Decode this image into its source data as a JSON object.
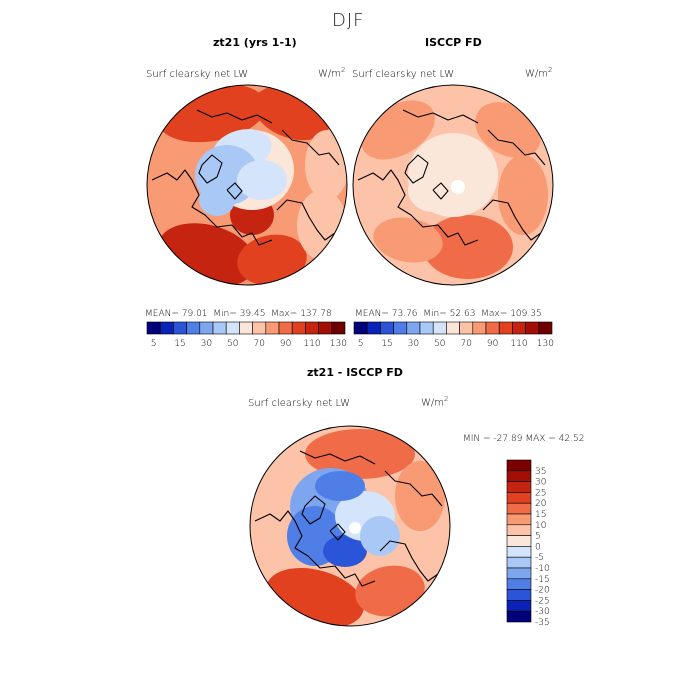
{
  "figure": {
    "title": "DJF"
  },
  "panels": [
    {
      "title": "zt21 (yrs 1-1)",
      "variable": "Surf clearsky net LW",
      "units_base": "W/m",
      "units_exp": "2",
      "stats": {
        "mean_label": "MEAN=",
        "mean": "79.01",
        "min_label": "Min=",
        "min": "39.45",
        "max_label": "Max=",
        "max": "137.78"
      }
    },
    {
      "title": "ISCCP FD",
      "variable": "Surf clearsky net LW",
      "units_base": "W/m",
      "units_exp": "2",
      "stats": {
        "mean_label": "MEAN=",
        "mean": "73.76",
        "min_label": "Min=",
        "min": "52.63",
        "max_label": "Max=",
        "max": "109.35"
      }
    },
    {
      "title": "zt21 - ISCCP FD",
      "variable": "Surf clearsky net LW",
      "units_base": "W/m",
      "units_exp": "2",
      "stats": {
        "min_label": "MIN =",
        "min": "-27.89",
        "max_label": "MAX =",
        "max": "42.52"
      }
    }
  ],
  "chart_data": [
    {
      "type": "heatmap",
      "title": "zt21 (yrs 1-1)",
      "projection": "north polar stereographic",
      "colorbar": {
        "orientation": "horizontal",
        "tick_labels": [
          "5",
          "15",
          "30",
          "50",
          "70",
          "90",
          "110",
          "130"
        ],
        "colors": [
          "#00007a",
          "#0a22b8",
          "#2b55d8",
          "#4f7fe6",
          "#7ea6ef",
          "#aac8f6",
          "#d4e4fb",
          "#fbe6da",
          "#fcc3a8",
          "#f89a74",
          "#f06b47",
          "#e1411f",
          "#c52410",
          "#a30f05",
          "#6e0000"
        ]
      },
      "stats": {
        "mean": 79.01,
        "min": 39.45,
        "max": 137.78
      }
    },
    {
      "type": "heatmap",
      "title": "ISCCP FD",
      "projection": "north polar stereographic",
      "colorbar": {
        "orientation": "horizontal",
        "tick_labels": [
          "5",
          "15",
          "30",
          "50",
          "70",
          "90",
          "110",
          "130"
        ],
        "colors": [
          "#00007a",
          "#0a22b8",
          "#2b55d8",
          "#4f7fe6",
          "#7ea6ef",
          "#aac8f6",
          "#d4e4fb",
          "#fbe6da",
          "#fcc3a8",
          "#f89a74",
          "#f06b47",
          "#e1411f",
          "#c52410",
          "#a30f05",
          "#6e0000"
        ]
      },
      "stats": {
        "mean": 73.76,
        "min": 52.63,
        "max": 109.35
      }
    },
    {
      "type": "heatmap",
      "title": "zt21 - ISCCP FD",
      "projection": "north polar stereographic",
      "colorbar": {
        "orientation": "vertical",
        "tick_labels": [
          "35",
          "30",
          "25",
          "20",
          "15",
          "10",
          "5",
          "0",
          "-5",
          "-10",
          "-15",
          "-20",
          "-25",
          "-30",
          "-35"
        ],
        "colors": [
          "#7a0000",
          "#a30f05",
          "#c52410",
          "#e1411f",
          "#f06b47",
          "#f89a74",
          "#fcc3a8",
          "#fbe6da",
          "#d4e4fb",
          "#aac8f6",
          "#7ea6ef",
          "#4f7fe6",
          "#2b55d8",
          "#0a22b8",
          "#00007a"
        ]
      },
      "stats": {
        "min": -27.89,
        "max": 42.52
      }
    }
  ]
}
